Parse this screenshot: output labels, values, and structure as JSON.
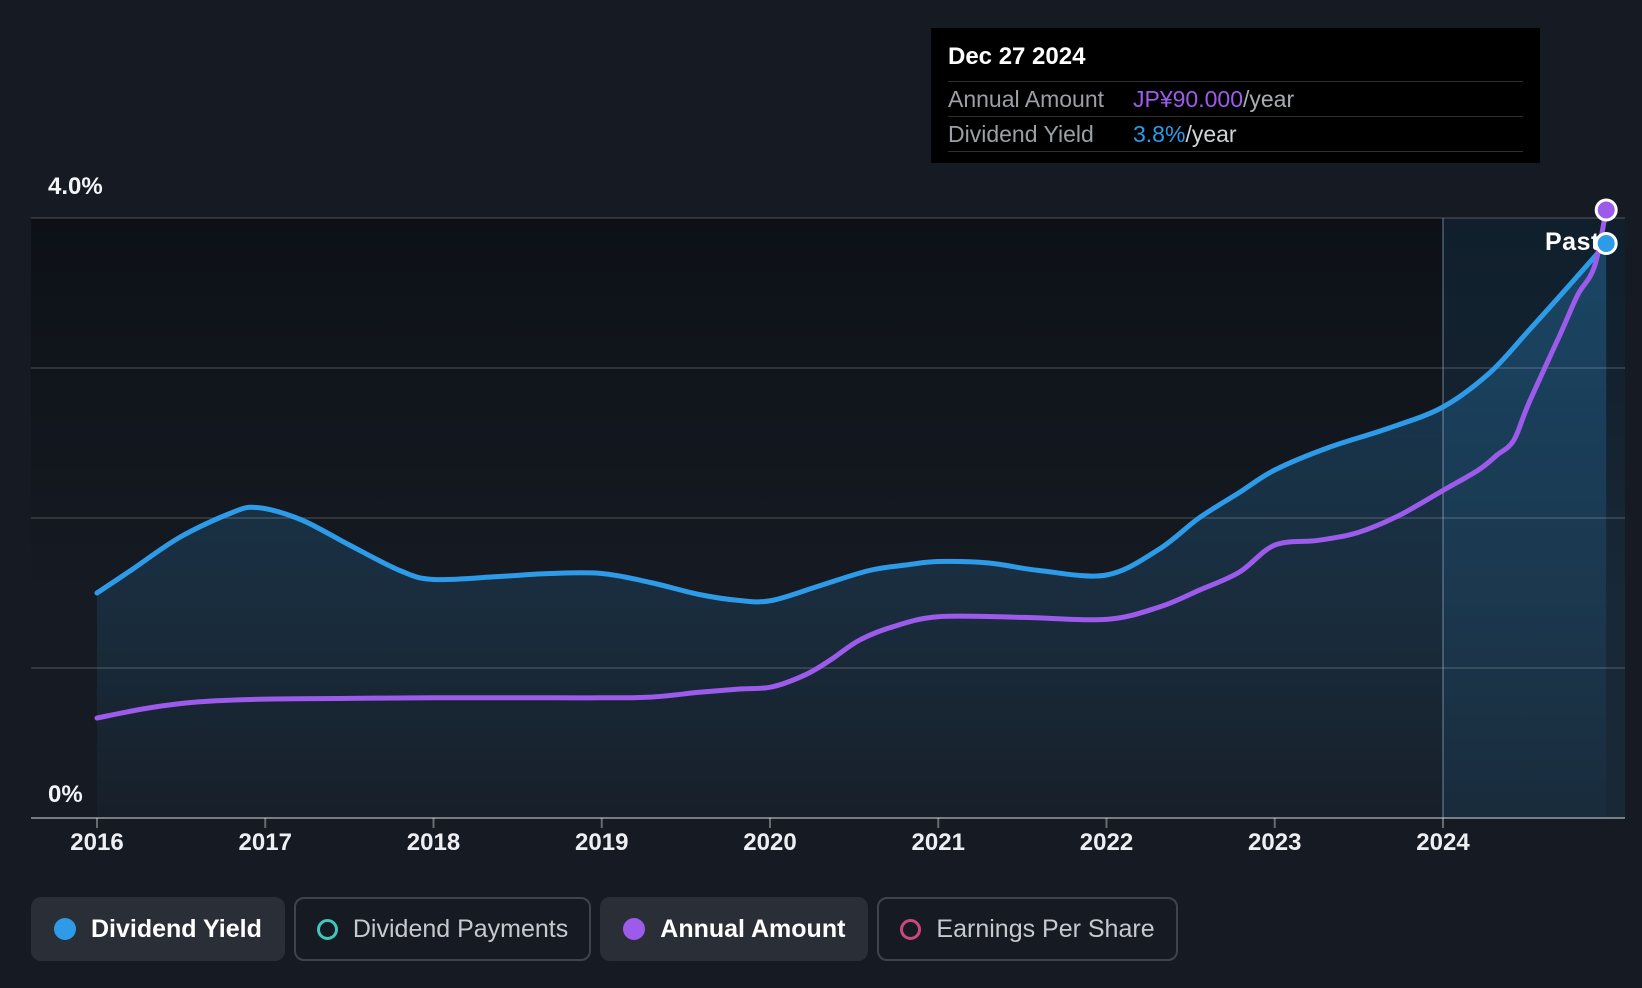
{
  "tooltip": {
    "date": "Dec 27 2024",
    "rows": [
      {
        "label": "Annual Amount",
        "value": "JP¥90.000",
        "suffix": "/year",
        "value_color": "#9C5BEB",
        "suffix_color": "#A9ADB2"
      },
      {
        "label": "Dividend Yield",
        "value": "3.8%",
        "suffix": "/year",
        "value_color": "#2E9BE8",
        "suffix_color": "#D2D4D6"
      }
    ]
  },
  "axis": {
    "y_top_label": "4.0%",
    "y_bottom_label": "0%",
    "years": [
      "2016",
      "2017",
      "2018",
      "2019",
      "2020",
      "2021",
      "2022",
      "2023",
      "2024"
    ]
  },
  "past_label": "Past",
  "legend": [
    {
      "label": "Dividend Yield",
      "color": "#2E9BE8",
      "style": "filled",
      "active": true
    },
    {
      "label": "Dividend Payments",
      "color": "#43C6B7",
      "style": "hollow",
      "active": false
    },
    {
      "label": "Annual Amount",
      "color": "#9C5BEB",
      "style": "filled",
      "active": true
    },
    {
      "label": "Earnings Per Share",
      "color": "#C9497F",
      "style": "hollow",
      "active": false
    }
  ],
  "colors": {
    "background": "#161B23",
    "yield_line": "#2E9BE8",
    "amount_line": "#9C5BEB",
    "gridline": "rgba(255,255,255,0.13)",
    "axis_line": "rgba(255,255,255,0.42)",
    "past_divider": "rgba(170,200,230,0.30)",
    "past_overlay": "rgba(47,156,230,0.10)",
    "area_fill_top": "rgba(47,156,230,0.32)",
    "area_fill_bottom": "rgba(47,156,230,0.03)"
  },
  "chart_data": {
    "type": "line",
    "title": "Dividend history chart",
    "x_range": [
      2016,
      2024.97
    ],
    "past_region_start": 2024,
    "y_axis": {
      "label": "Dividend Yield",
      "unit": "%",
      "min": 0,
      "max": 4.0,
      "gridlines_pct": [
        0,
        1,
        2,
        3,
        4
      ],
      "tick_labels": [
        "0%",
        "4.0%"
      ]
    },
    "legend_position": "bottom",
    "series": [
      {
        "name": "Dividend Yield",
        "unit": "%",
        "color": "#2E9BE8",
        "area": true,
        "end_marker": true,
        "points": [
          [
            2016.0,
            1.5
          ],
          [
            2016.2,
            1.65
          ],
          [
            2016.49,
            1.87
          ],
          [
            2016.79,
            2.03
          ],
          [
            2016.95,
            2.07
          ],
          [
            2017.21,
            1.99
          ],
          [
            2017.5,
            1.82
          ],
          [
            2017.8,
            1.65
          ],
          [
            2018.0,
            1.59
          ],
          [
            2018.39,
            1.61
          ],
          [
            2018.69,
            1.63
          ],
          [
            2019.0,
            1.63
          ],
          [
            2019.29,
            1.57
          ],
          [
            2019.58,
            1.49
          ],
          [
            2019.82,
            1.45
          ],
          [
            2020.01,
            1.45
          ],
          [
            2020.3,
            1.55
          ],
          [
            2020.59,
            1.65
          ],
          [
            2020.83,
            1.69
          ],
          [
            2021.0,
            1.71
          ],
          [
            2021.3,
            1.7
          ],
          [
            2021.6,
            1.65
          ],
          [
            2022.0,
            1.62
          ],
          [
            2022.31,
            1.79
          ],
          [
            2022.55,
            2.0
          ],
          [
            2022.79,
            2.17
          ],
          [
            2023.0,
            2.32
          ],
          [
            2023.32,
            2.47
          ],
          [
            2023.68,
            2.6
          ],
          [
            2024.0,
            2.74
          ],
          [
            2024.28,
            2.97
          ],
          [
            2024.51,
            3.25
          ],
          [
            2024.75,
            3.55
          ],
          [
            2024.97,
            3.83
          ]
        ]
      },
      {
        "name": "Annual Amount",
        "unit": "JP¥/year",
        "color": "#9C5BEB",
        "area": false,
        "end_marker": true,
        "points": [
          [
            2016.0,
            14.8
          ],
          [
            2016.31,
            16.3
          ],
          [
            2016.61,
            17.2
          ],
          [
            2017.0,
            17.6
          ],
          [
            2017.5,
            17.7
          ],
          [
            2018.0,
            17.8
          ],
          [
            2018.7,
            17.8
          ],
          [
            2019.0,
            17.8
          ],
          [
            2019.29,
            17.9
          ],
          [
            2019.58,
            18.6
          ],
          [
            2019.82,
            19.1
          ],
          [
            2020.01,
            19.4
          ],
          [
            2020.21,
            21.2
          ],
          [
            2020.36,
            23.4
          ],
          [
            2020.53,
            26.3
          ],
          [
            2020.73,
            28.3
          ],
          [
            2021.0,
            29.8
          ],
          [
            2021.5,
            29.7
          ],
          [
            2022.0,
            29.4
          ],
          [
            2022.31,
            31.2
          ],
          [
            2022.55,
            33.7
          ],
          [
            2022.79,
            36.4
          ],
          [
            2023.0,
            40.4
          ],
          [
            2023.26,
            41.1
          ],
          [
            2023.5,
            42.3
          ],
          [
            2023.74,
            44.8
          ],
          [
            2024.0,
            48.5
          ],
          [
            2024.21,
            51.5
          ],
          [
            2024.32,
            53.7
          ],
          [
            2024.42,
            55.9
          ],
          [
            2024.51,
            61.4
          ],
          [
            2024.7,
            71.8
          ],
          [
            2024.8,
            77.4
          ],
          [
            2024.9,
            81.6
          ],
          [
            2024.97,
            90.0
          ]
        ]
      }
    ]
  }
}
